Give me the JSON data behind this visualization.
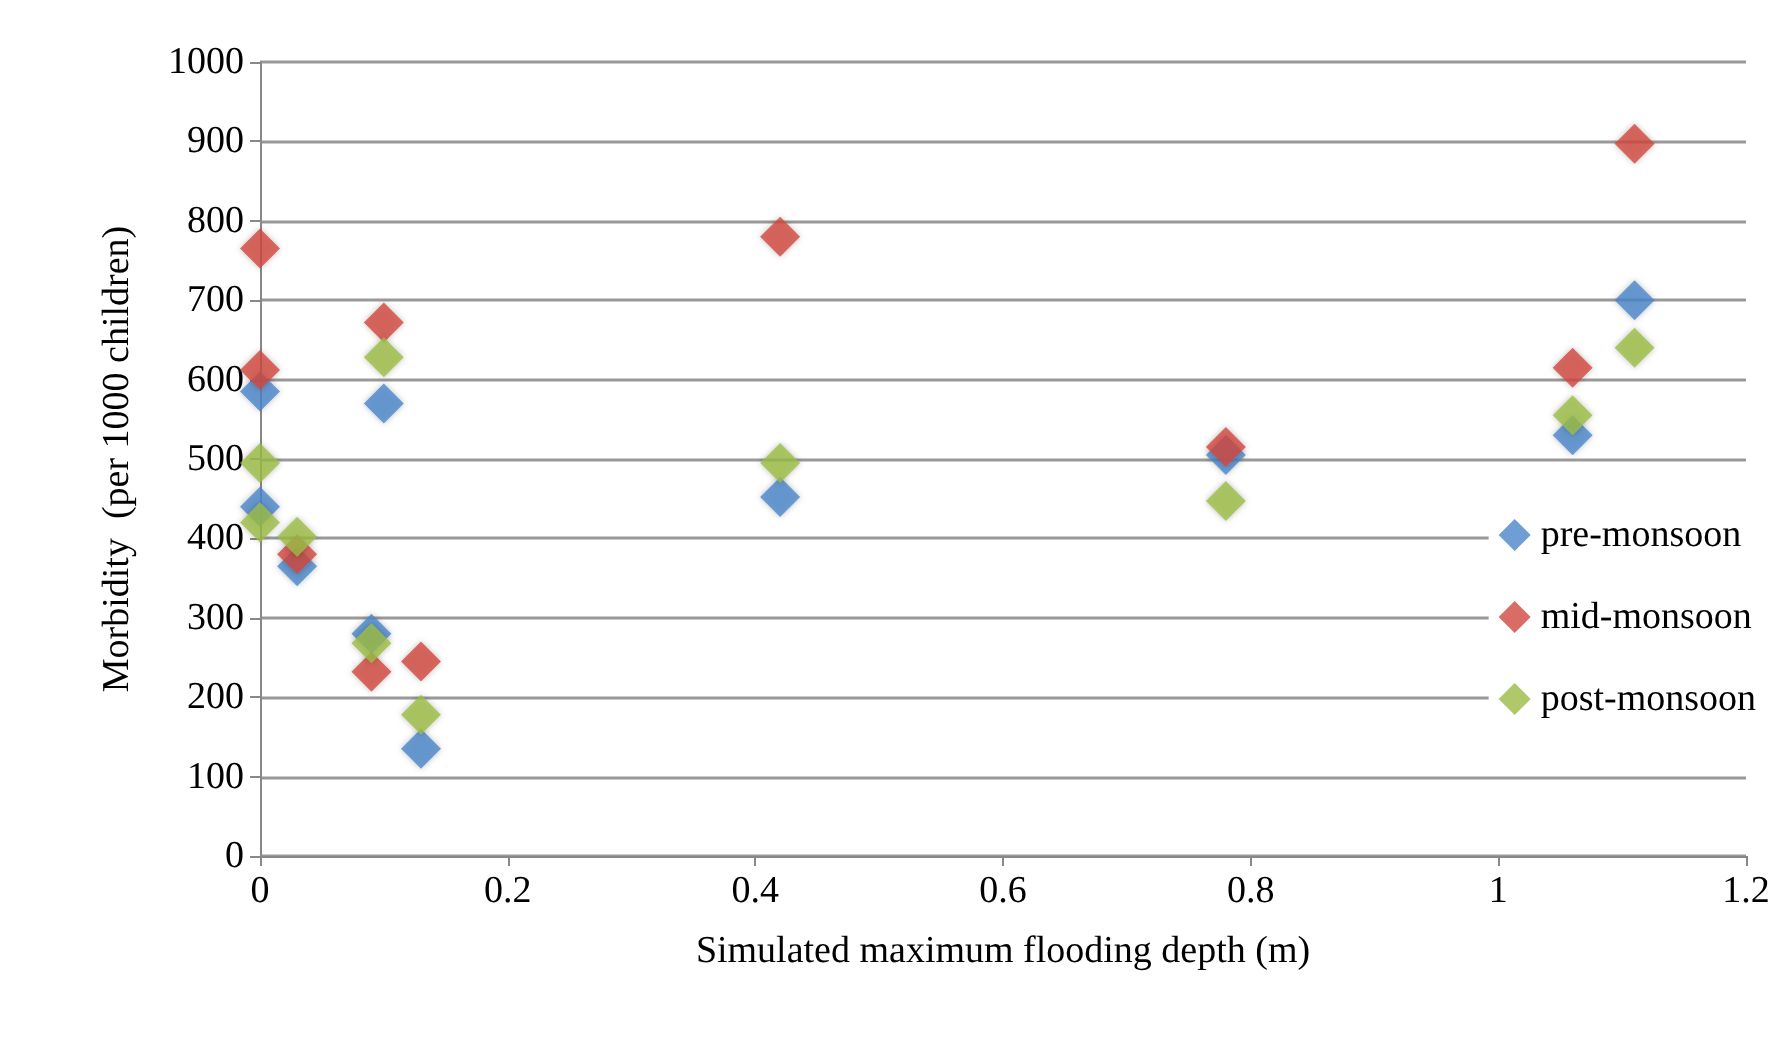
{
  "chart_data": {
    "type": "scatter",
    "xlabel": "Simulated maximum flooding depth (m)",
    "ylabel": "Morbidity  (per 1000 children)",
    "xlim": [
      0,
      1.2
    ],
    "xticks": [
      0,
      0.2,
      0.4,
      0.6,
      0.8,
      1,
      1.2
    ],
    "ylim": [
      0,
      1000
    ],
    "yticks": [
      0,
      100,
      200,
      300,
      400,
      500,
      600,
      700,
      800,
      900,
      1000
    ],
    "grid": "y",
    "legend": "right",
    "marker": "diamond",
    "x": [
      0,
      0,
      0.03,
      0.09,
      0.1,
      0.13,
      0.42,
      0.78,
      1.06,
      1.11
    ],
    "series": [
      {
        "name": "pre-monsoon",
        "color": "#4a86c8",
        "values": [
          585,
          440,
          365,
          280,
          570,
          135,
          452,
          505,
          530,
          700
        ]
      },
      {
        "name": "mid-monsoon",
        "color": "#d0473f",
        "values": [
          765,
          612,
          380,
          232,
          672,
          245,
          780,
          515,
          615,
          897
        ]
      },
      {
        "name": "post-monsoon",
        "color": "#9bbb45",
        "values": [
          495,
          420,
          402,
          268,
          628,
          178,
          495,
          447,
          555,
          640
        ]
      }
    ]
  }
}
